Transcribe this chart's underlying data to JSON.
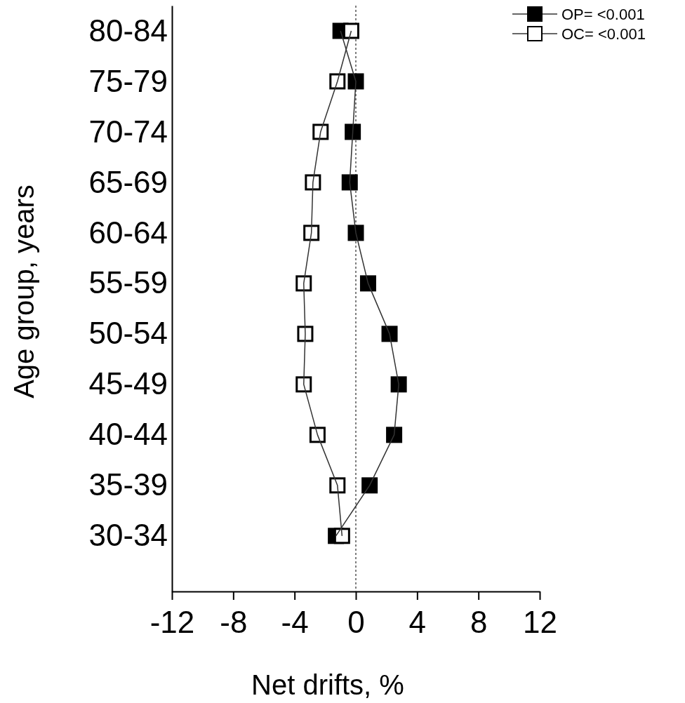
{
  "chart_data": {
    "type": "line",
    "orientation": "horizontal",
    "xlabel": "Net drifts, %",
    "ylabel": "Age group, years",
    "categories": [
      "80-84",
      "75-79",
      "70-74",
      "65-69",
      "60-64",
      "55-59",
      "50-54",
      "45-49",
      "40-44",
      "35-39",
      "30-34"
    ],
    "series": [
      {
        "name": "OP= <0.001",
        "color": "#000000",
        "values": [
          -1.0,
          0.0,
          -0.2,
          -0.4,
          0.0,
          0.8,
          2.2,
          2.8,
          2.5,
          0.9,
          -1.3
        ]
      },
      {
        "name": "OC= <0.001",
        "color": "#ffffff",
        "values": [
          -0.3,
          -1.2,
          -2.3,
          -2.8,
          -2.9,
          -3.4,
          -3.3,
          -3.4,
          -2.5,
          -1.2,
          -0.9
        ]
      }
    ],
    "xlim": [
      -12,
      12
    ],
    "xticks": [
      -12,
      -8,
      -4,
      0,
      4,
      8,
      12
    ],
    "ref_lines": [
      {
        "axis": "x",
        "value": 0,
        "line_style": "dotted",
        "color": "#555555"
      }
    ],
    "marker": "square",
    "line_style": "solid",
    "grid": false,
    "legend": "top right"
  }
}
